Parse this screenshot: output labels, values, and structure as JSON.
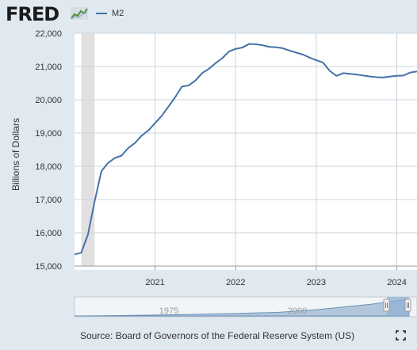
{
  "header": {
    "logo_text": "FRED",
    "legend_label": "M2"
  },
  "colors": {
    "series": "#4572a7",
    "background": "#e1e9f0",
    "plot": "#ffffff",
    "recession": "#e1e1e1",
    "grid": "#cdd5dd"
  },
  "chart_data": {
    "type": "line",
    "title": "",
    "xlabel": "",
    "ylabel": "Billions of Dollars",
    "ylim": [
      15000,
      22000
    ],
    "xlim": [
      "2020-01",
      "2024-04"
    ],
    "grid": true,
    "y_ticks": [
      "15,000",
      "16,000",
      "17,000",
      "18,000",
      "19,000",
      "20,000",
      "21,000",
      "22,000"
    ],
    "x_ticks": [
      "2021",
      "2022",
      "2023",
      "2024"
    ],
    "recession_shading": [
      [
        "2020-02",
        "2020-04"
      ]
    ],
    "series": [
      {
        "name": "M2",
        "x": [
          "2020-01",
          "2020-02",
          "2020-03",
          "2020-04",
          "2020-05",
          "2020-06",
          "2020-07",
          "2020-08",
          "2020-09",
          "2020-10",
          "2020-11",
          "2020-12",
          "2021-01",
          "2021-02",
          "2021-03",
          "2021-04",
          "2021-05",
          "2021-06",
          "2021-07",
          "2021-08",
          "2021-09",
          "2021-10",
          "2021-11",
          "2021-12",
          "2022-01",
          "2022-02",
          "2022-03",
          "2022-04",
          "2022-05",
          "2022-06",
          "2022-07",
          "2022-08",
          "2022-09",
          "2022-10",
          "2022-11",
          "2022-12",
          "2023-01",
          "2023-02",
          "2023-03",
          "2023-04",
          "2023-05",
          "2023-06",
          "2023-07",
          "2023-08",
          "2023-09",
          "2023-10",
          "2023-11",
          "2023-12",
          "2024-01",
          "2024-02",
          "2024-03",
          "2024-04"
        ],
        "values": [
          15350,
          15400,
          15950,
          16950,
          17850,
          18100,
          18250,
          18320,
          18550,
          18700,
          18920,
          19080,
          19300,
          19520,
          19800,
          20080,
          20400,
          20430,
          20580,
          20800,
          20930,
          21100,
          21250,
          21450,
          21530,
          21570,
          21680,
          21670,
          21640,
          21590,
          21580,
          21550,
          21480,
          21420,
          21360,
          21270,
          21190,
          21120,
          20870,
          20720,
          20800,
          20780,
          20760,
          20730,
          20700,
          20680,
          20670,
          20700,
          20720,
          20730,
          20820,
          20850
        ]
      }
    ],
    "navigator": {
      "x_ticks": [
        "1975",
        "2000"
      ]
    }
  },
  "footer": {
    "source": "Source: Board of Governors of the Federal Reserve System (US)"
  }
}
